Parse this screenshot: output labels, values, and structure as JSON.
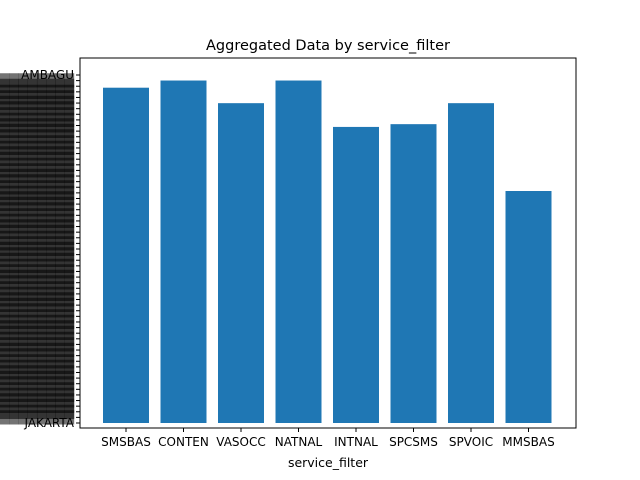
{
  "chart_data": {
    "type": "bar",
    "title": "Aggregated Data by service_filter",
    "xlabel": "service_filter",
    "ylabel": "",
    "categories": [
      "SMSBAS",
      "CONTEN",
      "VASOCC",
      "NATNAL",
      "INTNAL",
      "SPCSMS",
      "SPVOIC",
      "MMSBAS"
    ],
    "values": [
      60.7,
      62.0,
      57.9,
      62.0,
      53.6,
      54.1,
      57.9,
      42.0
    ],
    "ylim": [
      0,
      63
    ],
    "y_tick_labels_legible": [
      "JAKARTA",
      "AMBAGU"
    ],
    "y_tick_count": 63,
    "grid": false,
    "legend": "none",
    "bar_color": "#1f77b4"
  }
}
